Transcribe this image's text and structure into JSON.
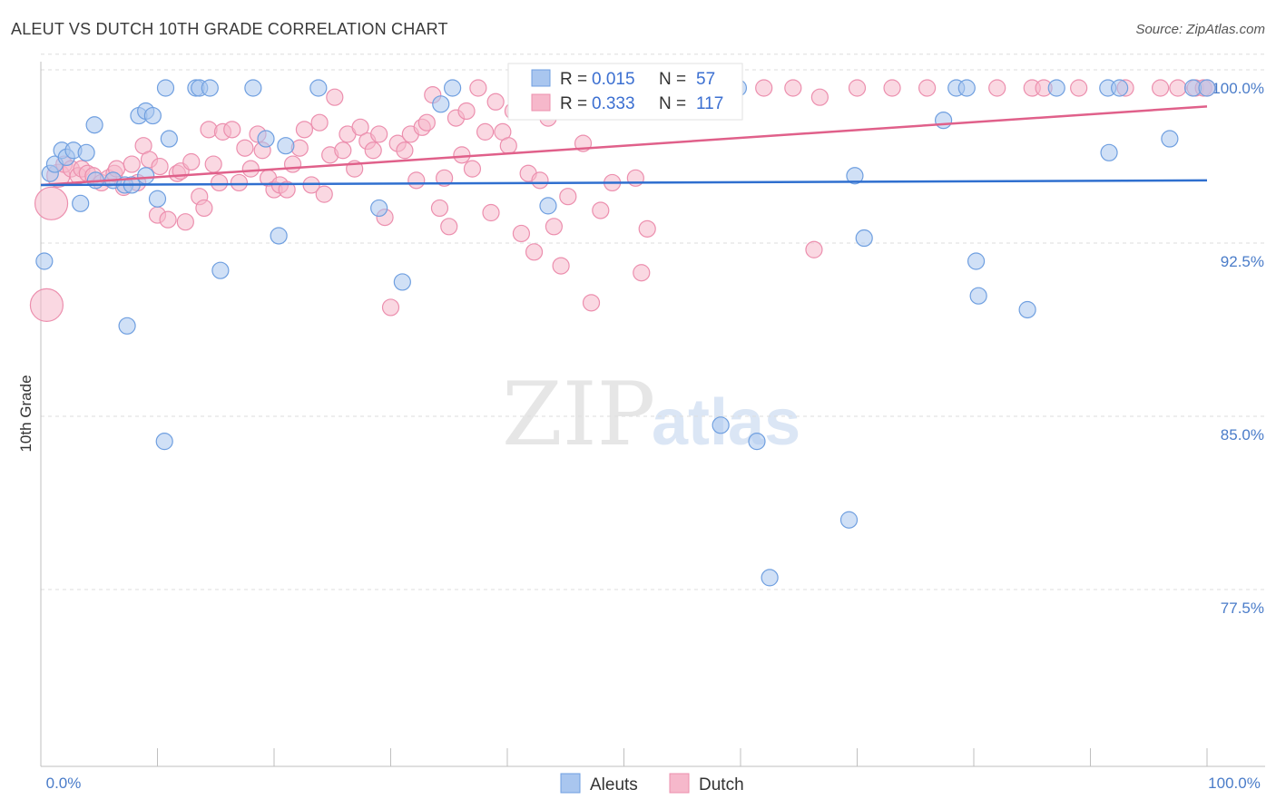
{
  "header": {
    "title": "ALEUT VS DUTCH 10TH GRADE CORRELATION CHART",
    "source": "Source: ZipAtlas.com"
  },
  "watermark": {
    "zip": "ZIP",
    "atlas": "atlas"
  },
  "colors": {
    "aleuts_fill": "#a9c6ef",
    "aleuts_stroke": "#6f9fe0",
    "aleuts_line": "#2f6fcf",
    "dutch_fill": "#f6b8cb",
    "dutch_stroke": "#ec8fae",
    "dutch_line": "#e0608a",
    "tick_text": "#4a7cc9",
    "grid": "#dddddd"
  },
  "legend": {
    "rows": [
      {
        "r_label": "R = ",
        "r_value": "0.015",
        "n_label": "N = ",
        "n_value": "57"
      },
      {
        "r_label": "R = ",
        "r_value": "0.333",
        "n_label": "N = ",
        "n_value": "117"
      }
    ],
    "bottom": [
      "Aleuts",
      "Dutch"
    ]
  },
  "chart_data": {
    "type": "scatter",
    "title": "ALEUT VS DUTCH 10TH GRADE CORRELATION CHART",
    "xlabel": "",
    "ylabel": "10th Grade",
    "xlim": [
      0,
      100
    ],
    "ylim": [
      70,
      101.5
    ],
    "x_tick_labels": [
      "0.0%",
      "100.0%"
    ],
    "y_ticks": [
      {
        "value": 100,
        "label": "100.0%"
      },
      {
        "value": 92.5,
        "label": "92.5%"
      },
      {
        "value": 85,
        "label": "85.0%"
      },
      {
        "value": 77.5,
        "label": "77.5%"
      }
    ],
    "series": [
      {
        "name": "Aleuts",
        "R": 0.015,
        "N": 57,
        "trend": {
          "x": [
            0,
            100
          ],
          "y": [
            95.8,
            96.0
          ]
        },
        "points": [
          {
            "x": 0.3,
            "y": 92.5
          },
          {
            "x": 0.8,
            "y": 96.3
          },
          {
            "x": 1.2,
            "y": 96.7
          },
          {
            "x": 1.8,
            "y": 97.3
          },
          {
            "x": 2.2,
            "y": 97.0
          },
          {
            "x": 2.8,
            "y": 97.3
          },
          {
            "x": 3.4,
            "y": 95.0
          },
          {
            "x": 3.9,
            "y": 97.2
          },
          {
            "x": 4.6,
            "y": 98.4
          },
          {
            "x": 4.7,
            "y": 96.0
          },
          {
            "x": 6.2,
            "y": 96.0
          },
          {
            "x": 7.2,
            "y": 95.8
          },
          {
            "x": 7.4,
            "y": 89.7
          },
          {
            "x": 7.8,
            "y": 95.8
          },
          {
            "x": 8.4,
            "y": 98.8
          },
          {
            "x": 9.0,
            "y": 96.2
          },
          {
            "x": 9.0,
            "y": 99.0
          },
          {
            "x": 9.6,
            "y": 98.8
          },
          {
            "x": 10.0,
            "y": 95.2
          },
          {
            "x": 10.6,
            "y": 84.7
          },
          {
            "x": 10.7,
            "y": 100.0
          },
          {
            "x": 11.0,
            "y": 97.8
          },
          {
            "x": 13.3,
            "y": 100.0
          },
          {
            "x": 13.6,
            "y": 100.0
          },
          {
            "x": 14.5,
            "y": 100.0
          },
          {
            "x": 15.4,
            "y": 92.1
          },
          {
            "x": 18.2,
            "y": 100.0
          },
          {
            "x": 19.3,
            "y": 97.8
          },
          {
            "x": 20.4,
            "y": 93.6
          },
          {
            "x": 21.0,
            "y": 97.5
          },
          {
            "x": 23.8,
            "y": 100.0
          },
          {
            "x": 29.0,
            "y": 94.8
          },
          {
            "x": 31.0,
            "y": 91.6
          },
          {
            "x": 34.3,
            "y": 99.3
          },
          {
            "x": 35.3,
            "y": 100.0
          },
          {
            "x": 43.5,
            "y": 94.9
          },
          {
            "x": 46.0,
            "y": 100.0
          },
          {
            "x": 58.3,
            "y": 85.4
          },
          {
            "x": 59.8,
            "y": 100.0
          },
          {
            "x": 61.4,
            "y": 84.7
          },
          {
            "x": 62.5,
            "y": 78.8
          },
          {
            "x": 69.3,
            "y": 81.3
          },
          {
            "x": 69.8,
            "y": 96.2
          },
          {
            "x": 70.6,
            "y": 93.5
          },
          {
            "x": 77.4,
            "y": 98.6
          },
          {
            "x": 78.5,
            "y": 100.0
          },
          {
            "x": 79.4,
            "y": 100.0
          },
          {
            "x": 80.2,
            "y": 92.5
          },
          {
            "x": 80.4,
            "y": 91.0
          },
          {
            "x": 84.6,
            "y": 90.4
          },
          {
            "x": 87.1,
            "y": 100.0
          },
          {
            "x": 91.5,
            "y": 100.0
          },
          {
            "x": 91.6,
            "y": 97.2
          },
          {
            "x": 92.5,
            "y": 100.0
          },
          {
            "x": 96.8,
            "y": 97.8
          },
          {
            "x": 98.8,
            "y": 100.0
          },
          {
            "x": 100.0,
            "y": 100.0
          }
        ]
      },
      {
        "name": "Dutch",
        "R": 0.333,
        "N": 117,
        "trend": {
          "x": [
            0,
            100
          ],
          "y": [
            95.8,
            99.2
          ]
        },
        "points": [
          {
            "x": 0.5,
            "y": 90.6,
            "s": 2
          },
          {
            "x": 0.9,
            "y": 95.0,
            "s": 2
          },
          {
            "x": 1.5,
            "y": 96.2,
            "s": 1.4
          },
          {
            "x": 2.0,
            "y": 96.7
          },
          {
            "x": 2.6,
            "y": 96.5
          },
          {
            "x": 3.2,
            "y": 96.2
          },
          {
            "x": 3.5,
            "y": 96.5
          },
          {
            "x": 4.0,
            "y": 96.3
          },
          {
            "x": 4.5,
            "y": 96.2
          },
          {
            "x": 5.2,
            "y": 95.9
          },
          {
            "x": 5.8,
            "y": 96.1
          },
          {
            "x": 6.3,
            "y": 96.3
          },
          {
            "x": 6.5,
            "y": 96.5
          },
          {
            "x": 7.1,
            "y": 95.7
          },
          {
            "x": 7.8,
            "y": 96.7
          },
          {
            "x": 8.3,
            "y": 95.9
          },
          {
            "x": 8.8,
            "y": 97.5
          },
          {
            "x": 9.3,
            "y": 96.9
          },
          {
            "x": 10.0,
            "y": 94.5
          },
          {
            "x": 10.2,
            "y": 96.6
          },
          {
            "x": 10.9,
            "y": 94.3
          },
          {
            "x": 11.7,
            "y": 96.3
          },
          {
            "x": 12.0,
            "y": 96.4
          },
          {
            "x": 12.4,
            "y": 94.2
          },
          {
            "x": 12.9,
            "y": 96.8
          },
          {
            "x": 13.6,
            "y": 95.3
          },
          {
            "x": 14.0,
            "y": 94.8
          },
          {
            "x": 14.4,
            "y": 98.2
          },
          {
            "x": 14.8,
            "y": 96.7
          },
          {
            "x": 15.3,
            "y": 95.9
          },
          {
            "x": 15.6,
            "y": 98.1
          },
          {
            "x": 16.4,
            "y": 98.2
          },
          {
            "x": 17.0,
            "y": 95.9
          },
          {
            "x": 17.5,
            "y": 97.4
          },
          {
            "x": 18.0,
            "y": 96.5
          },
          {
            "x": 18.6,
            "y": 98.0
          },
          {
            "x": 19.0,
            "y": 97.3
          },
          {
            "x": 19.5,
            "y": 96.1
          },
          {
            "x": 20.0,
            "y": 95.6
          },
          {
            "x": 20.5,
            "y": 95.8
          },
          {
            "x": 21.1,
            "y": 95.6
          },
          {
            "x": 21.6,
            "y": 96.7
          },
          {
            "x": 22.2,
            "y": 97.4
          },
          {
            "x": 22.6,
            "y": 98.2
          },
          {
            "x": 23.2,
            "y": 95.8
          },
          {
            "x": 23.9,
            "y": 98.5
          },
          {
            "x": 24.3,
            "y": 95.4
          },
          {
            "x": 24.8,
            "y": 97.1
          },
          {
            "x": 25.2,
            "y": 99.6
          },
          {
            "x": 25.9,
            "y": 97.3
          },
          {
            "x": 26.3,
            "y": 98.0
          },
          {
            "x": 26.9,
            "y": 96.5
          },
          {
            "x": 27.4,
            "y": 98.3
          },
          {
            "x": 28.0,
            "y": 97.7
          },
          {
            "x": 28.5,
            "y": 97.3
          },
          {
            "x": 29.0,
            "y": 98.0
          },
          {
            "x": 29.5,
            "y": 94.4
          },
          {
            "x": 30.0,
            "y": 90.5
          },
          {
            "x": 30.6,
            "y": 97.6
          },
          {
            "x": 31.2,
            "y": 97.3
          },
          {
            "x": 31.7,
            "y": 98.0
          },
          {
            "x": 32.2,
            "y": 96.0
          },
          {
            "x": 32.7,
            "y": 98.3
          },
          {
            "x": 33.1,
            "y": 98.5
          },
          {
            "x": 33.6,
            "y": 99.7
          },
          {
            "x": 34.2,
            "y": 94.8
          },
          {
            "x": 34.6,
            "y": 96.1
          },
          {
            "x": 35.0,
            "y": 94.0
          },
          {
            "x": 35.6,
            "y": 98.7
          },
          {
            "x": 36.1,
            "y": 97.1
          },
          {
            "x": 36.5,
            "y": 99.0
          },
          {
            "x": 37.0,
            "y": 96.5
          },
          {
            "x": 37.5,
            "y": 100.0
          },
          {
            "x": 38.1,
            "y": 98.1
          },
          {
            "x": 38.6,
            "y": 94.6
          },
          {
            "x": 39.0,
            "y": 99.4
          },
          {
            "x": 39.6,
            "y": 98.1
          },
          {
            "x": 40.1,
            "y": 97.5
          },
          {
            "x": 40.5,
            "y": 99.0
          },
          {
            "x": 41.2,
            "y": 93.7
          },
          {
            "x": 41.8,
            "y": 96.3
          },
          {
            "x": 42.3,
            "y": 92.9
          },
          {
            "x": 42.8,
            "y": 96.0
          },
          {
            "x": 43.5,
            "y": 98.7
          },
          {
            "x": 44.0,
            "y": 94.0
          },
          {
            "x": 44.6,
            "y": 92.3
          },
          {
            "x": 45.2,
            "y": 95.3
          },
          {
            "x": 46.0,
            "y": 100.0
          },
          {
            "x": 46.5,
            "y": 97.6
          },
          {
            "x": 47.2,
            "y": 90.7
          },
          {
            "x": 48.0,
            "y": 94.7
          },
          {
            "x": 49.0,
            "y": 95.9
          },
          {
            "x": 50.4,
            "y": 99.5
          },
          {
            "x": 51.0,
            "y": 96.1
          },
          {
            "x": 51.5,
            "y": 92.0
          },
          {
            "x": 52.0,
            "y": 93.9
          },
          {
            "x": 53.0,
            "y": 99.0
          },
          {
            "x": 54.0,
            "y": 100.0
          },
          {
            "x": 57.0,
            "y": 100.0
          },
          {
            "x": 59.0,
            "y": 99.6
          },
          {
            "x": 62.0,
            "y": 100.0
          },
          {
            "x": 64.5,
            "y": 100.0
          },
          {
            "x": 66.3,
            "y": 93.0
          },
          {
            "x": 66.8,
            "y": 99.6
          },
          {
            "x": 70.0,
            "y": 100.0
          },
          {
            "x": 73.0,
            "y": 100.0
          },
          {
            "x": 76.0,
            "y": 100.0
          },
          {
            "x": 82.0,
            "y": 100.0
          },
          {
            "x": 85.0,
            "y": 100.0
          },
          {
            "x": 86.0,
            "y": 100.0
          },
          {
            "x": 89.0,
            "y": 100.0
          },
          {
            "x": 93.0,
            "y": 100.0
          },
          {
            "x": 96.0,
            "y": 100.0
          },
          {
            "x": 97.5,
            "y": 100.0
          },
          {
            "x": 99.0,
            "y": 100.0
          },
          {
            "x": 99.7,
            "y": 100.0
          },
          {
            "x": 100.0,
            "y": 100.0
          }
        ]
      }
    ]
  }
}
